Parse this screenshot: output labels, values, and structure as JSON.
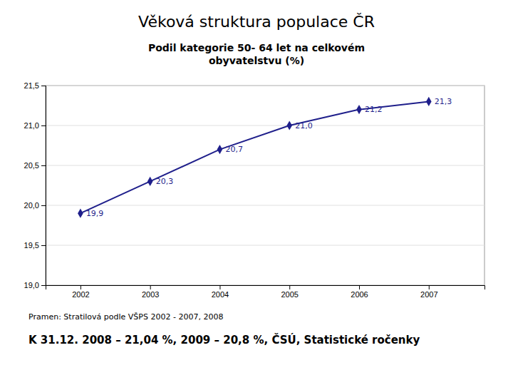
{
  "chart_data": {
    "type": "line",
    "title": "Věková struktura populace ČR",
    "subtitle": "Podil kategorie 50- 64 let na celkovém\nobyvatelstvu (%)",
    "annotations": [
      "Pramen: Stratilová podle VŠPS 2002 - 2007, 2008",
      "K 31.12. 2008 – 21,04 %, 2009 – 20,8 %, ČSÚ, Statistické ročenky"
    ],
    "x": [
      2002,
      2003,
      2004,
      2005,
      2006,
      2007
    ],
    "values": [
      19.9,
      20.3,
      20.7,
      21.0,
      21.2,
      21.3
    ],
    "value_labels": [
      "19,9",
      "20,3",
      "20,7",
      "21,0",
      "21,2",
      "21,3"
    ],
    "data_labels": true,
    "color": "#1F1F8B",
    "marker": "diamond",
    "xlim": [
      2001.5,
      2007.8
    ],
    "xticks": [
      2002,
      2003,
      2004,
      2005,
      2006,
      2007
    ],
    "ylim": [
      19.0,
      21.5
    ],
    "yticks": [
      {
        "value": 19.0,
        "label": "19,0"
      },
      {
        "value": 19.5,
        "label": "19,5"
      },
      {
        "value": 20.0,
        "label": "20,0"
      },
      {
        "value": 20.5,
        "label": "20,5"
      },
      {
        "value": 21.0,
        "label": "21,0"
      },
      {
        "value": 21.5,
        "label": "21,5"
      }
    ],
    "grid": true
  }
}
